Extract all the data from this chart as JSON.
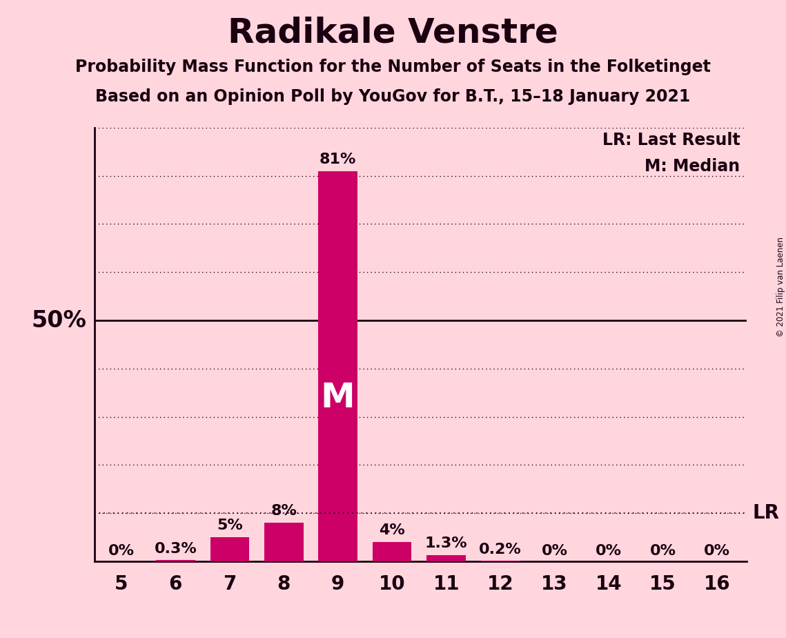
{
  "title": "Radikale Venstre",
  "subtitle1": "Probability Mass Function for the Number of Seats in the Folketinget",
  "subtitle2": "Based on an Opinion Poll by YouGov for B.T., 15–18 January 2021",
  "copyright": "© 2021 Filip van Laenen",
  "categories": [
    5,
    6,
    7,
    8,
    9,
    10,
    11,
    12,
    13,
    14,
    15,
    16
  ],
  "values": [
    0.0,
    0.3,
    5.0,
    8.0,
    81.0,
    4.0,
    1.3,
    0.2,
    0.0,
    0.0,
    0.0,
    0.0
  ],
  "labels": [
    "0%",
    "0.3%",
    "5%",
    "8%",
    "81%",
    "4%",
    "1.3%",
    "0.2%",
    "0%",
    "0%",
    "0%",
    "0%"
  ],
  "bar_color": "#CC0066",
  "background_color": "#FFD6DE",
  "text_color": "#1a0010",
  "median_seat": 9,
  "median_label": "M",
  "lr_value": 10.0,
  "ylim": [
    0,
    90
  ],
  "yticks_dotted": [
    10,
    20,
    30,
    40,
    60,
    70,
    80,
    90
  ],
  "ytick_solid": 50,
  "ylabel_50": "50%",
  "legend_lr": "LR: Last Result",
  "legend_m": "M: Median",
  "title_fontsize": 36,
  "subtitle_fontsize": 17,
  "label_fontsize": 16,
  "axis_tick_fontsize": 20,
  "ylabel_fontsize": 24
}
